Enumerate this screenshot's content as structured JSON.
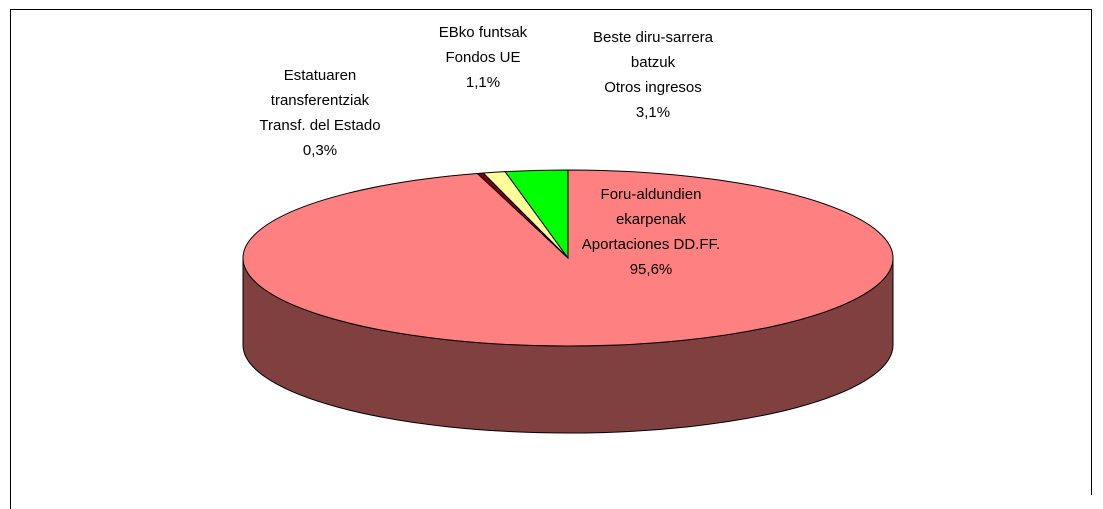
{
  "chart_data": {
    "type": "pie",
    "categories": [
      [
        "Foru-aldundien",
        "ekarpenak",
        "Aportaciones DD.FF."
      ],
      [
        "Estatuaren",
        "transferentziak",
        "Transf. del Estado"
      ],
      [
        "EBko funtsak",
        "Fondos UE"
      ],
      [
        "Beste diru-sarrera",
        "batzuk",
        "Otros ingresos"
      ]
    ],
    "values": [
      95.6,
      0.3,
      1.1,
      3.1
    ],
    "value_labels": [
      "95,6%",
      "0,3%",
      "1,1%",
      "3,1%"
    ],
    "colors": [
      "#ff8080",
      "#800000",
      "#ffff99",
      "#00ff00"
    ]
  }
}
